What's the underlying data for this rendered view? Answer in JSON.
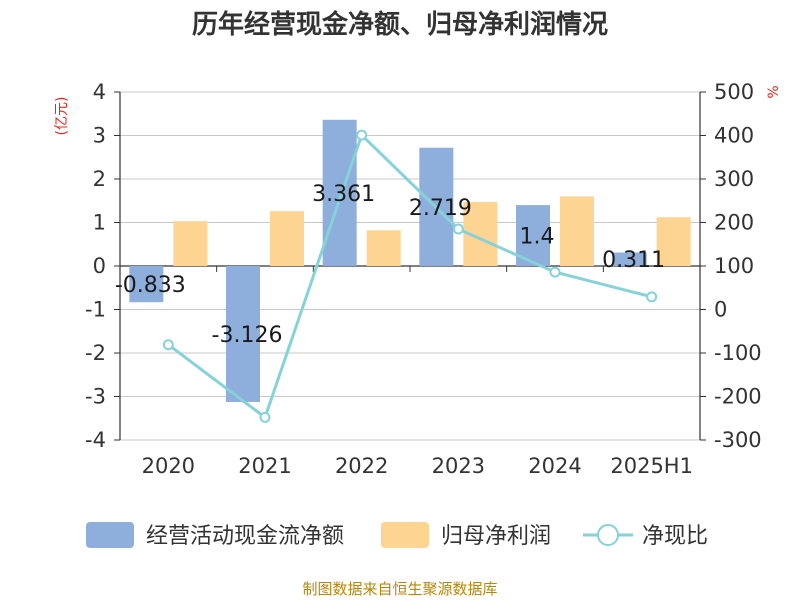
{
  "chart_data": {
    "type": "bar",
    "title": "历年经营现金净额、归母净利润情况",
    "categories": [
      "2020",
      "2021",
      "2022",
      "2023",
      "2024",
      "2025H1"
    ],
    "y_left": {
      "unit": "(亿元)",
      "lim": [
        -4,
        4
      ],
      "ticks": [
        "4",
        "3",
        "2",
        "1",
        "0",
        "-1",
        "-2",
        "-3",
        "-4"
      ]
    },
    "y_right": {
      "unit": "%",
      "lim": [
        -300,
        500
      ],
      "ticks": [
        "500",
        "400",
        "300",
        "200",
        "100",
        "0",
        "-100",
        "-200",
        "-300"
      ]
    },
    "series": [
      {
        "name": "经营活动现金流净额",
        "kind": "bar",
        "axis": "left",
        "color": "#8eaedc",
        "values": [
          -0.833,
          -3.126,
          3.361,
          2.719,
          1.4,
          0.311
        ],
        "labels": [
          "-0.833",
          "-3.126",
          "3.361",
          "2.719",
          "1.4",
          "0.311"
        ]
      },
      {
        "name": "归母净利润",
        "kind": "bar",
        "axis": "left",
        "color": "#fdd492",
        "values": [
          1.03,
          1.26,
          0.82,
          1.47,
          1.6,
          1.12
        ]
      },
      {
        "name": "净现比",
        "kind": "line",
        "axis": "right",
        "color": "#86d2d8",
        "values": [
          -81,
          -248,
          401,
          185,
          86,
          29
        ]
      }
    ],
    "grid": true,
    "legend": "bottom"
  },
  "source_text": "制图数据来自恒生聚源数据库"
}
